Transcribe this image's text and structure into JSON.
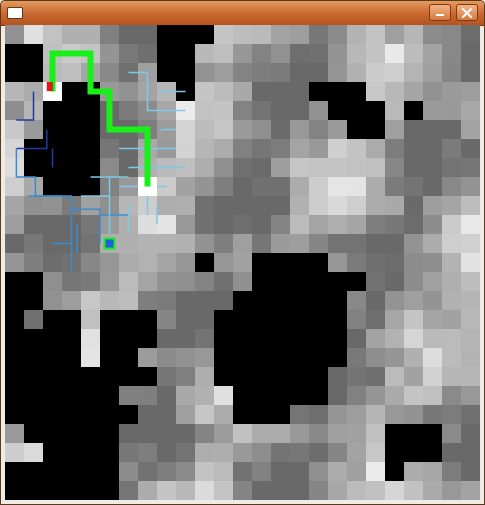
{
  "window": {
    "title": "",
    "icons": {
      "app": "window-icon",
      "minimize": "minimize-icon",
      "close": "close-icon"
    }
  },
  "colors": {
    "wall": "#000000",
    "path": "#19f019",
    "tree_light": "#7ec8e8",
    "tree_mid": "#3a8cd0",
    "tree_dark": "#1e3ca0",
    "start_marker": "#2060e0",
    "goal_marker": "#e01818",
    "node_highlight": "#ffffff"
  },
  "game": {
    "grid_cells": 25,
    "map_seed": 7,
    "walls": [
      [
        0,
        1
      ],
      [
        1,
        1
      ],
      [
        0,
        2
      ],
      [
        1,
        2
      ],
      [
        8,
        0
      ],
      [
        9,
        0
      ],
      [
        10,
        0
      ],
      [
        8,
        1
      ],
      [
        9,
        1
      ],
      [
        8,
        2
      ],
      [
        9,
        2
      ],
      [
        9,
        3
      ],
      [
        2,
        3
      ],
      [
        3,
        3
      ],
      [
        4,
        3
      ],
      [
        2,
        4
      ],
      [
        3,
        4
      ],
      [
        4,
        4
      ],
      [
        2,
        5
      ],
      [
        3,
        5
      ],
      [
        4,
        5
      ],
      [
        1,
        6
      ],
      [
        2,
        6
      ],
      [
        3,
        6
      ],
      [
        4,
        6
      ],
      [
        1,
        7
      ],
      [
        2,
        7
      ],
      [
        3,
        7
      ],
      [
        4,
        7
      ],
      [
        2,
        8
      ],
      [
        3,
        8
      ],
      [
        4,
        8
      ],
      [
        16,
        3
      ],
      [
        17,
        3
      ],
      [
        18,
        3
      ],
      [
        17,
        4
      ],
      [
        18,
        4
      ],
      [
        19,
        4
      ],
      [
        18,
        5
      ],
      [
        19,
        5
      ],
      [
        21,
        4
      ],
      [
        10,
        12
      ],
      [
        0,
        13
      ],
      [
        1,
        13
      ],
      [
        0,
        14
      ],
      [
        1,
        14
      ],
      [
        0,
        15
      ],
      [
        2,
        15
      ],
      [
        3,
        15
      ],
      [
        0,
        16
      ],
      [
        1,
        16
      ],
      [
        2,
        16
      ],
      [
        3,
        16
      ],
      [
        0,
        17
      ],
      [
        1,
        17
      ],
      [
        2,
        17
      ],
      [
        3,
        17
      ],
      [
        0,
        18
      ],
      [
        1,
        18
      ],
      [
        2,
        18
      ],
      [
        3,
        18
      ],
      [
        4,
        18
      ],
      [
        0,
        19
      ],
      [
        1,
        19
      ],
      [
        2,
        19
      ],
      [
        3,
        19
      ],
      [
        4,
        19
      ],
      [
        5,
        19
      ],
      [
        0,
        20
      ],
      [
        1,
        20
      ],
      [
        2,
        20
      ],
      [
        3,
        20
      ],
      [
        4,
        20
      ],
      [
        5,
        20
      ],
      [
        6,
        20
      ],
      [
        1,
        21
      ],
      [
        2,
        21
      ],
      [
        3,
        21
      ],
      [
        4,
        21
      ],
      [
        5,
        21
      ],
      [
        2,
        22
      ],
      [
        3,
        22
      ],
      [
        4,
        22
      ],
      [
        5,
        22
      ],
      [
        0,
        23
      ],
      [
        1,
        23
      ],
      [
        2,
        23
      ],
      [
        3,
        23
      ],
      [
        4,
        23
      ],
      [
        5,
        23
      ],
      [
        0,
        24
      ],
      [
        1,
        24
      ],
      [
        2,
        24
      ],
      [
        3,
        24
      ],
      [
        4,
        24
      ],
      [
        5,
        24
      ],
      [
        5,
        15
      ],
      [
        6,
        15
      ],
      [
        7,
        15
      ],
      [
        5,
        16
      ],
      [
        6,
        16
      ],
      [
        7,
        16
      ],
      [
        5,
        17
      ],
      [
        6,
        17
      ],
      [
        5,
        18
      ],
      [
        6,
        18
      ],
      [
        7,
        18
      ],
      [
        13,
        12
      ],
      [
        14,
        12
      ],
      [
        15,
        12
      ],
      [
        16,
        12
      ],
      [
        13,
        13
      ],
      [
        14,
        13
      ],
      [
        15,
        13
      ],
      [
        16,
        13
      ],
      [
        17,
        13
      ],
      [
        18,
        13
      ],
      [
        12,
        14
      ],
      [
        13,
        14
      ],
      [
        14,
        14
      ],
      [
        15,
        14
      ],
      [
        16,
        14
      ],
      [
        17,
        14
      ],
      [
        11,
        15
      ],
      [
        12,
        15
      ],
      [
        13,
        15
      ],
      [
        14,
        15
      ],
      [
        15,
        15
      ],
      [
        16,
        15
      ],
      [
        17,
        15
      ],
      [
        11,
        16
      ],
      [
        12,
        16
      ],
      [
        13,
        16
      ],
      [
        14,
        16
      ],
      [
        15,
        16
      ],
      [
        16,
        16
      ],
      [
        17,
        16
      ],
      [
        11,
        17
      ],
      [
        12,
        17
      ],
      [
        13,
        17
      ],
      [
        14,
        17
      ],
      [
        15,
        17
      ],
      [
        16,
        17
      ],
      [
        17,
        17
      ],
      [
        11,
        18
      ],
      [
        12,
        18
      ],
      [
        13,
        18
      ],
      [
        14,
        18
      ],
      [
        15,
        18
      ],
      [
        16,
        18
      ],
      [
        12,
        19
      ],
      [
        13,
        19
      ],
      [
        14,
        19
      ],
      [
        15,
        19
      ],
      [
        16,
        19
      ],
      [
        12,
        20
      ],
      [
        13,
        20
      ],
      [
        14,
        20
      ],
      [
        20,
        21
      ],
      [
        21,
        21
      ],
      [
        22,
        21
      ],
      [
        20,
        22
      ],
      [
        21,
        22
      ],
      [
        22,
        22
      ],
      [
        20,
        23
      ]
    ],
    "bright_cells": [
      [
        9,
        25
      ]
    ],
    "path_nodes": [
      [
        2.5,
        3.5
      ],
      [
        2.5,
        1.5
      ],
      [
        4.5,
        1.5
      ],
      [
        4.5,
        3.5
      ],
      [
        5.5,
        3.5
      ],
      [
        5.5,
        5.5
      ],
      [
        7.5,
        5.5
      ],
      [
        7.5,
        6.5
      ],
      [
        7.5,
        8.5
      ]
    ],
    "highlight_nodes": [
      [
        2.5,
        3.5
      ],
      [
        7.5,
        8.5
      ]
    ],
    "start": [
      5.5,
      11.5
    ],
    "goal": [
      2.2,
      3.3
    ],
    "tree": {
      "dark": [
        [
          [
            2.2,
            5.5
          ],
          [
            2.2,
            6.5
          ],
          [
            0.6,
            6.5
          ]
        ],
        [
          [
            1.5,
            3.5
          ],
          [
            1.5,
            5.0
          ],
          [
            0.6,
            5.0
          ]
        ],
        [
          [
            2.5,
            6.5
          ],
          [
            2.5,
            7.5
          ]
        ]
      ],
      "mid": [
        [
          [
            0.6,
            6.5
          ],
          [
            0.6,
            8.0
          ],
          [
            1.6,
            8.0
          ],
          [
            1.6,
            9.0
          ],
          [
            3.5,
            9.0
          ],
          [
            3.5,
            9.7
          ],
          [
            5.0,
            9.7
          ]
        ],
        [
          [
            1.2,
            9.0
          ],
          [
            3.0,
            9.0
          ]
        ],
        [
          [
            3.5,
            9.7
          ],
          [
            3.5,
            11.5
          ],
          [
            2.5,
            11.5
          ]
        ],
        [
          [
            3.5,
            11.5
          ],
          [
            3.5,
            13.0
          ]
        ],
        [
          [
            3.8,
            10.5
          ],
          [
            3.8,
            12.0
          ]
        ],
        [
          [
            5.0,
            9.7
          ],
          [
            5.0,
            11.5
          ]
        ],
        [
          [
            5.0,
            10.0
          ],
          [
            6.5,
            10.0
          ]
        ]
      ],
      "light": [
        [
          [
            7.5,
            2.5
          ],
          [
            7.5,
            4.5
          ],
          [
            8.2,
            4.5
          ]
        ],
        [
          [
            6.5,
            2.5
          ],
          [
            7.5,
            2.5
          ]
        ],
        [
          [
            8.2,
            3.5
          ],
          [
            9.5,
            3.5
          ]
        ],
        [
          [
            8.2,
            4.5
          ],
          [
            9.5,
            4.5
          ]
        ],
        [
          [
            8.2,
            5.5
          ],
          [
            9.0,
            5.5
          ]
        ],
        [
          [
            6.0,
            6.5
          ],
          [
            9.0,
            6.5
          ]
        ],
        [
          [
            7.5,
            8.5
          ],
          [
            7.5,
            10.0
          ]
        ],
        [
          [
            6.5,
            7.5
          ],
          [
            9.5,
            7.5
          ]
        ],
        [
          [
            6.0,
            8.5
          ],
          [
            8.5,
            8.5
          ]
        ],
        [
          [
            5.5,
            8.0
          ],
          [
            5.5,
            11.0
          ]
        ],
        [
          [
            6.5,
            9.5
          ],
          [
            6.5,
            11.0
          ]
        ],
        [
          [
            4.5,
            8.0
          ],
          [
            6.5,
            8.0
          ]
        ],
        [
          [
            8.0,
            9.5
          ],
          [
            8.0,
            10.5
          ]
        ],
        [
          [
            4.0,
            9.0
          ],
          [
            5.5,
            9.0
          ]
        ]
      ]
    }
  }
}
